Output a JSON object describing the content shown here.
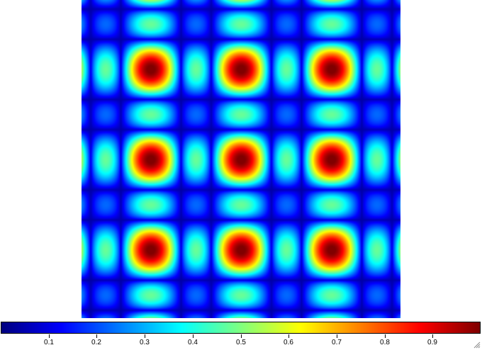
{
  "chart_data": {
    "type": "heatmap",
    "colormap": "jet",
    "peak_grid": {
      "rows": 3,
      "cols": 3,
      "pattern": "sinc-squared interference"
    },
    "value_range": [
      0,
      1
    ],
    "colorbar": {
      "ticks": [
        "0.1",
        "0.2",
        "0.3",
        "0.4",
        "0.5",
        "0.6",
        "0.7",
        "0.8",
        "0.9"
      ],
      "tick_values": [
        0.1,
        0.2,
        0.3,
        0.4,
        0.5,
        0.6,
        0.7,
        0.8,
        0.9
      ]
    }
  },
  "ui": {
    "resize_grip_icon": "resize-grip-icon"
  }
}
